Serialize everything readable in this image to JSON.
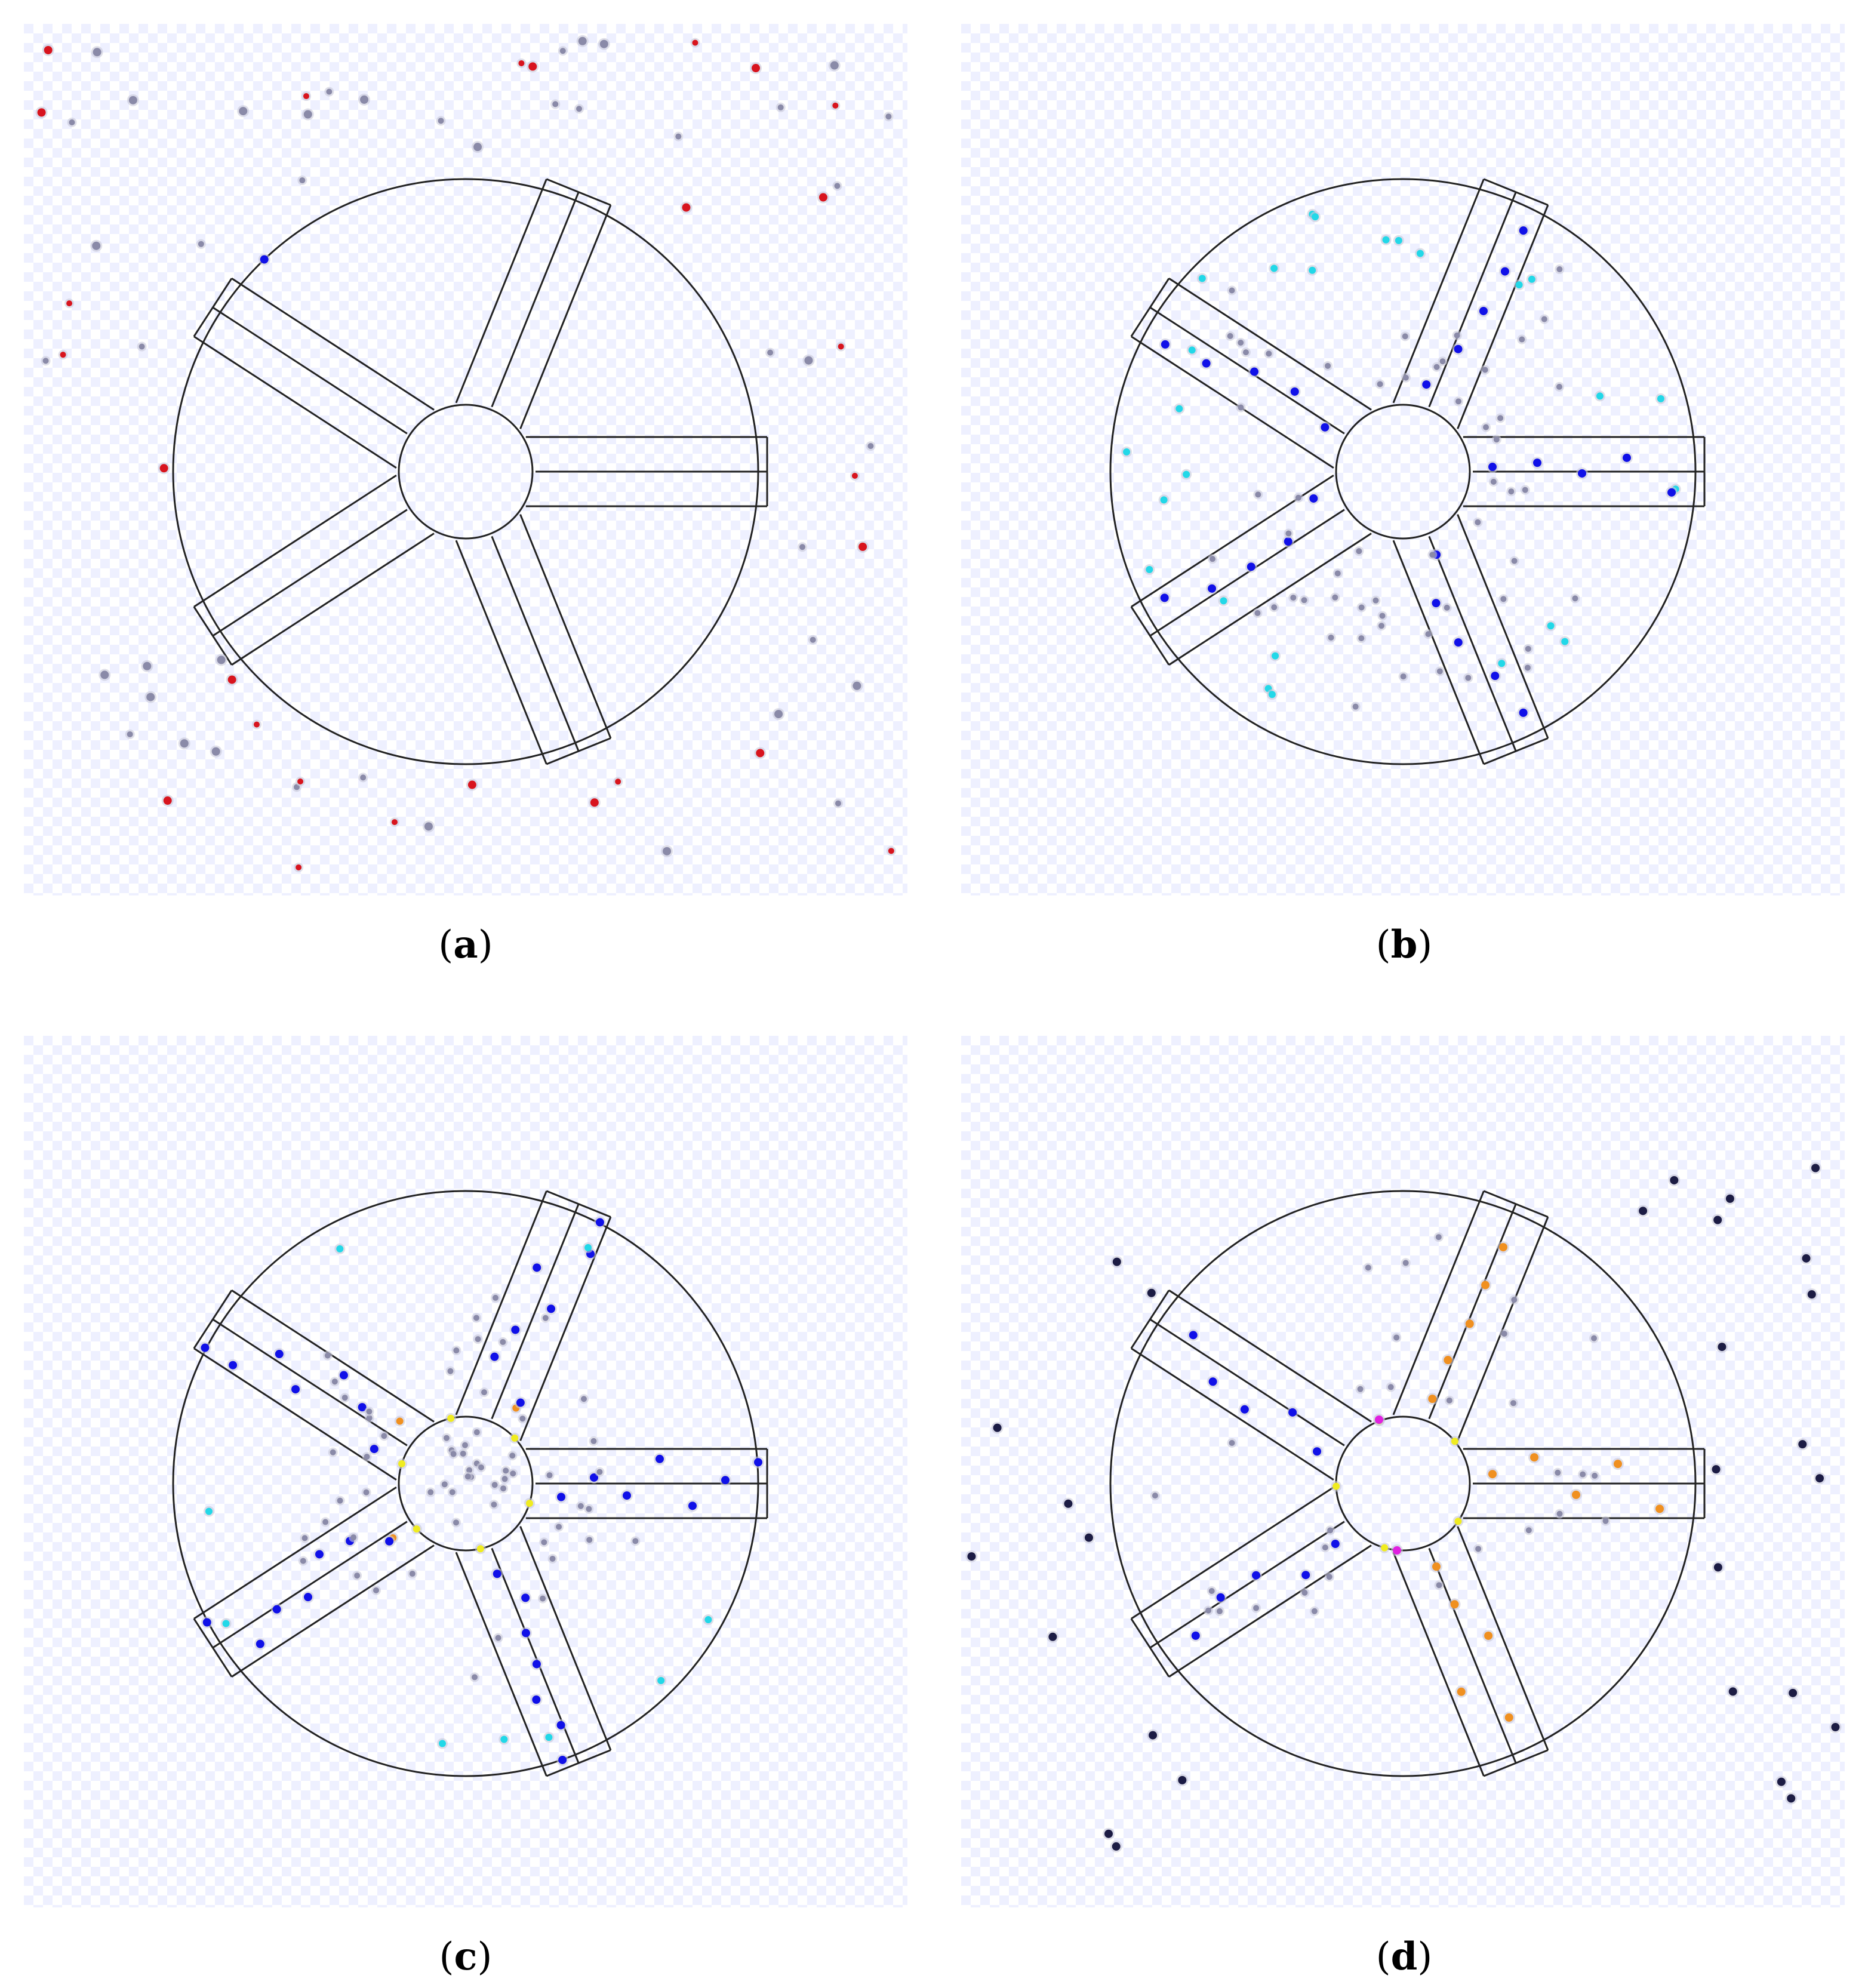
{
  "colors": {
    "background_grid": "#eef0ff",
    "outline": "#222222",
    "grey_dot": "#8a8aa8",
    "red_dot": "#d8141e",
    "blue_dot": "#1010e8",
    "cyan_dot": "#22d8e8",
    "yellow_dot": "#f0ec20",
    "orange_dot": "#f09020",
    "magenta_dot": "#e020e0",
    "navy_dot": "#1c1c44"
  },
  "panels": [
    {
      "id": "a",
      "caption": "a"
    },
    {
      "id": "b",
      "caption": "b"
    },
    {
      "id": "c",
      "caption": "c"
    },
    {
      "id": "d",
      "caption": "d"
    }
  ]
}
